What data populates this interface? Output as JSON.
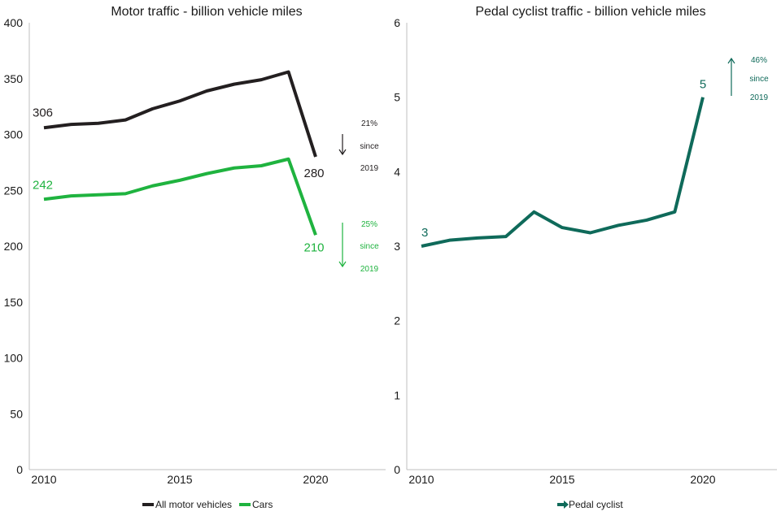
{
  "chart_data": [
    {
      "type": "line",
      "title": "Motor traffic - billion vehicle miles",
      "x": [
        2010,
        2011,
        2012,
        2013,
        2014,
        2015,
        2016,
        2017,
        2018,
        2019,
        2020
      ],
      "x_ticks": [
        "2010",
        "2015",
        "2020"
      ],
      "ylim": [
        0,
        400
      ],
      "y_ticks": [
        "0",
        "50",
        "100",
        "150",
        "200",
        "250",
        "300",
        "350",
        "400"
      ],
      "grid": false,
      "legend": "bottom",
      "series": [
        {
          "name": "All motor vehicles",
          "color": "#231f20",
          "values": [
            306,
            309,
            310,
            313,
            323,
            330,
            339,
            345,
            349,
            356,
            280
          ],
          "start_label": "306",
          "end_label": "280"
        },
        {
          "name": "Cars",
          "color": "#1fb33f",
          "values": [
            242,
            245,
            246,
            247,
            254,
            259,
            265,
            270,
            272,
            278,
            210
          ],
          "start_label": "242",
          "end_label": "210"
        }
      ],
      "annotations": [
        {
          "lines": [
            "21%",
            "since",
            "2019"
          ],
          "direction": "down",
          "color": "#231f20"
        },
        {
          "lines": [
            "25%",
            "since",
            "2019"
          ],
          "direction": "down",
          "color": "#1fb33f"
        }
      ]
    },
    {
      "type": "line",
      "title": "Pedal cyclist traffic - billion vehicle miles",
      "x": [
        2010,
        2011,
        2012,
        2013,
        2014,
        2015,
        2016,
        2017,
        2018,
        2019,
        2020
      ],
      "x_ticks": [
        "2010",
        "2015",
        "2020"
      ],
      "ylim": [
        0,
        6
      ],
      "y_ticks": [
        "0",
        "1",
        "2",
        "3",
        "4",
        "5",
        "6"
      ],
      "grid": false,
      "legend": "bottom",
      "series": [
        {
          "name": "Pedal cyclist",
          "color": "#0f6a5a",
          "values": [
            3.0,
            3.08,
            3.11,
            3.13,
            3.46,
            3.25,
            3.18,
            3.28,
            3.35,
            3.46,
            5.0
          ],
          "start_label": "3",
          "end_label": "5"
        }
      ],
      "annotations": [
        {
          "lines": [
            "46%",
            "since",
            "2019"
          ],
          "direction": "up",
          "color": "#0f6a5a"
        }
      ]
    }
  ]
}
